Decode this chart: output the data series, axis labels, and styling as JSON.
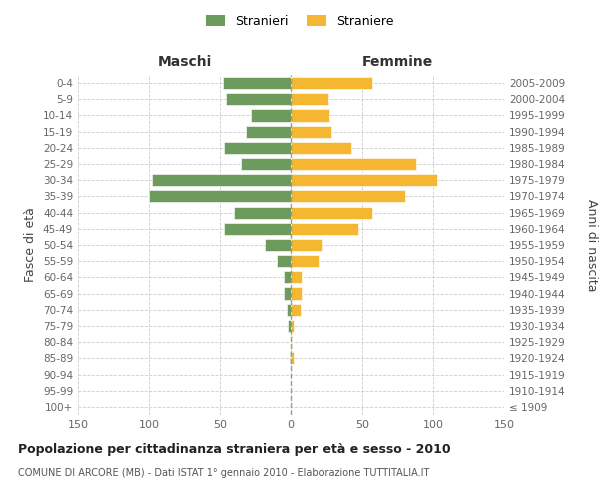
{
  "age_groups": [
    "100+",
    "95-99",
    "90-94",
    "85-89",
    "80-84",
    "75-79",
    "70-74",
    "65-69",
    "60-64",
    "55-59",
    "50-54",
    "45-49",
    "40-44",
    "35-39",
    "30-34",
    "25-29",
    "20-24",
    "15-19",
    "10-14",
    "5-9",
    "0-4"
  ],
  "birth_years": [
    "≤ 1909",
    "1910-1914",
    "1915-1919",
    "1920-1924",
    "1925-1929",
    "1930-1934",
    "1935-1939",
    "1940-1944",
    "1945-1949",
    "1950-1954",
    "1955-1959",
    "1960-1964",
    "1965-1969",
    "1970-1974",
    "1975-1979",
    "1980-1984",
    "1985-1989",
    "1990-1994",
    "1995-1999",
    "2000-2004",
    "2005-2009"
  ],
  "maschi": [
    0,
    0,
    0,
    1,
    0,
    2,
    3,
    5,
    5,
    10,
    18,
    47,
    40,
    100,
    98,
    35,
    47,
    32,
    28,
    46,
    48
  ],
  "femmine": [
    0,
    0,
    0,
    2,
    1,
    2,
    7,
    8,
    8,
    20,
    22,
    47,
    57,
    80,
    103,
    88,
    42,
    28,
    27,
    26,
    57
  ],
  "male_color": "#6d9b5e",
  "female_color": "#f5b731",
  "background_color": "#ffffff",
  "grid_color": "#cccccc",
  "title": "Popolazione per cittadinanza straniera per età e sesso - 2010",
  "subtitle": "COMUNE DI ARCORE (MB) - Dati ISTAT 1° gennaio 2010 - Elaborazione TUTTITALIA.IT",
  "xlabel_left": "Maschi",
  "xlabel_right": "Femmine",
  "ylabel_left": "Fasce di età",
  "ylabel_right": "Anni di nascita",
  "legend_male": "Stranieri",
  "legend_female": "Straniere",
  "xlim": 150,
  "dpi": 100,
  "figsize": [
    6.0,
    5.0
  ]
}
